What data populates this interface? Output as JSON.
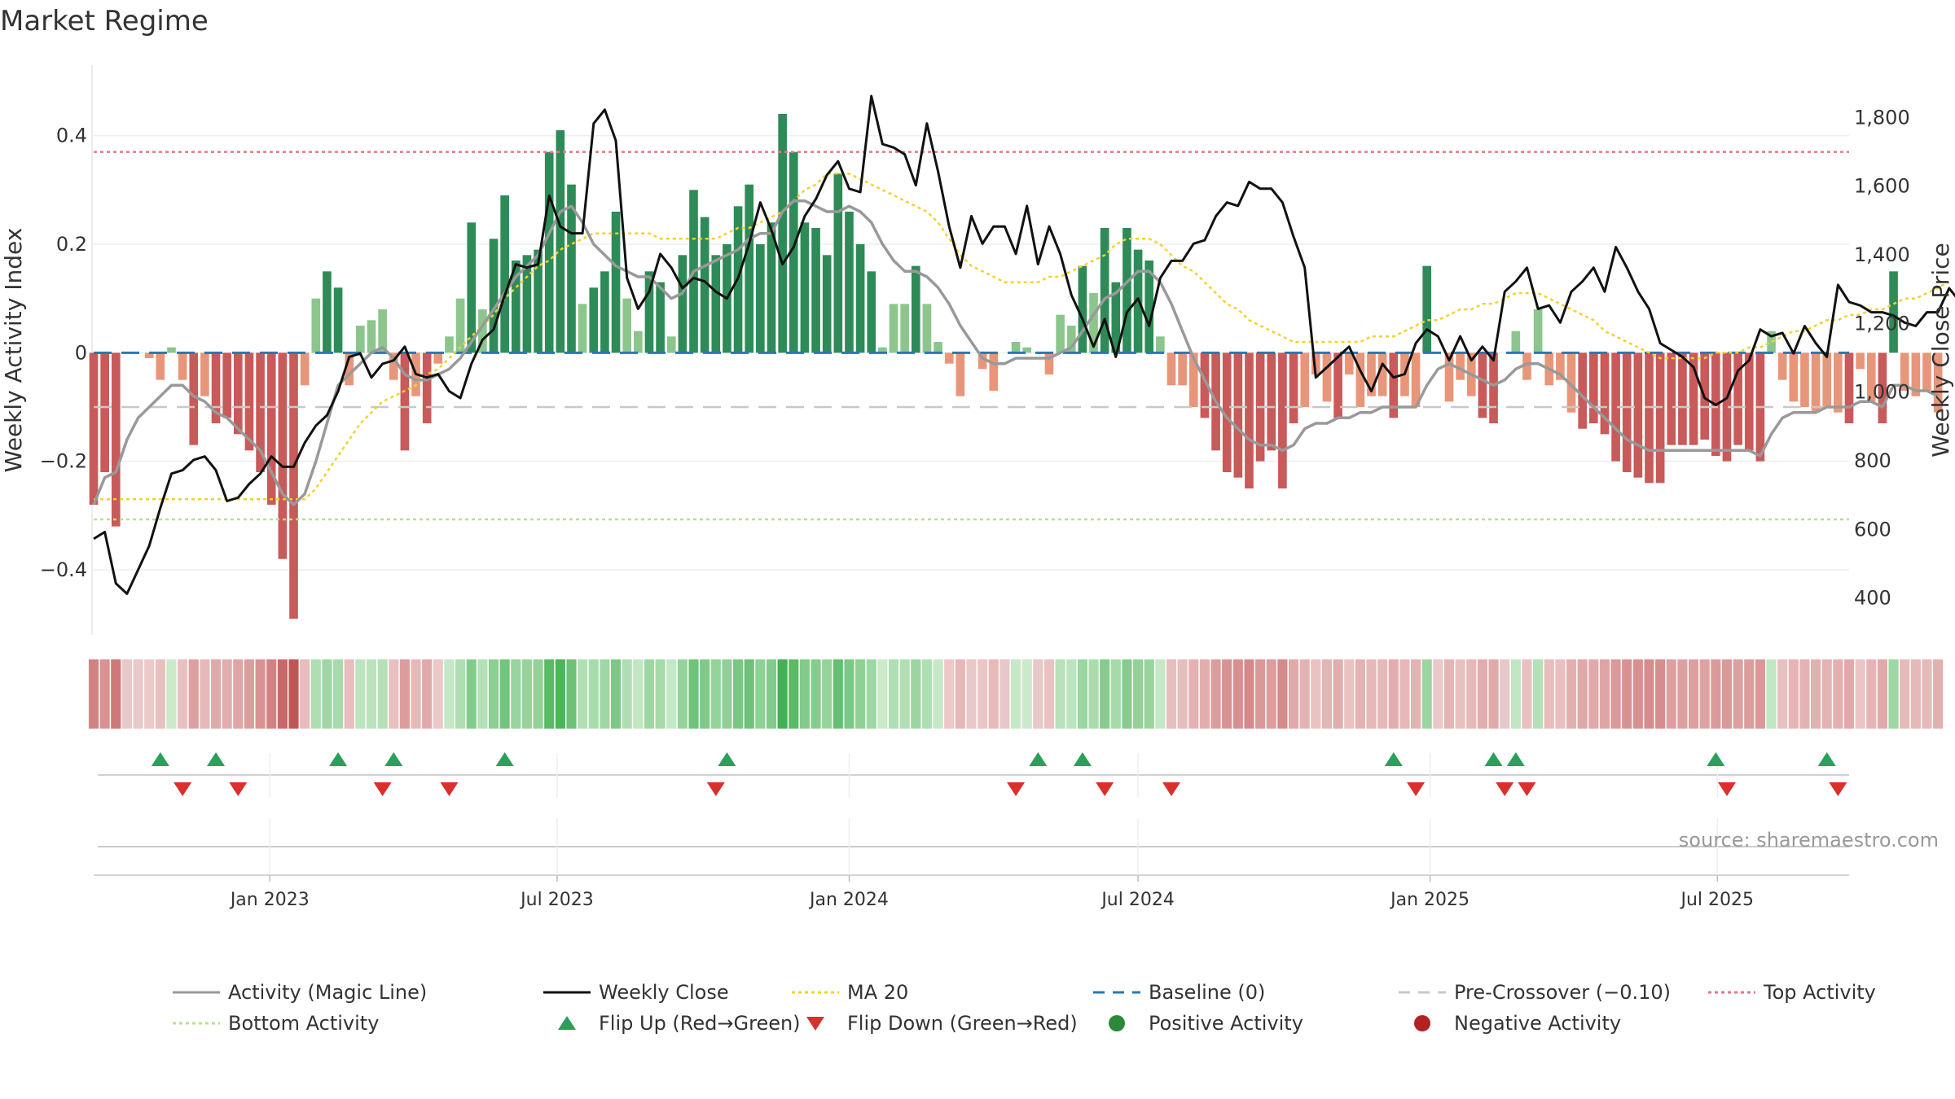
{
  "title": "Market Regime",
  "source_label": "source: sharemaestro.com",
  "chart_data": {
    "type": "bar",
    "y_left": {
      "label": "Weekly Activity Index",
      "range": [
        -0.52,
        0.53
      ],
      "ticks": [
        -0.4,
        -0.2,
        0,
        0.2,
        0.4
      ],
      "tick_labels": [
        "−0.4",
        "−0.2",
        "0",
        "0.2",
        "0.4"
      ]
    },
    "y_right": {
      "label": "Weekly Close Price",
      "range": [
        290,
        1950
      ],
      "ticks": [
        400,
        600,
        800,
        1000,
        1200,
        1400,
        1600,
        1800
      ],
      "tick_labels": [
        "400",
        "600",
        "800",
        "1,000",
        "1,200",
        "1,400",
        "1,600",
        "1,800"
      ]
    },
    "x_range": [
      "2022-09-12",
      "2025-09-22"
    ],
    "x_ticks": [
      {
        "date": "2023-01-01",
        "label": "Jan 2023"
      },
      {
        "date": "2023-07-01",
        "label": "Jul 2023"
      },
      {
        "date": "2024-01-01",
        "label": "Jan 2024"
      },
      {
        "date": "2024-07-01",
        "label": "Jul 2024"
      },
      {
        "date": "2025-01-01",
        "label": "Jan 2025"
      },
      {
        "date": "2025-07-01",
        "label": "Jul 2025"
      }
    ],
    "start_date": "2022-09-12",
    "weekly_activity": [
      -0.28,
      -0.22,
      -0.32,
      0,
      0,
      -0.01,
      -0.05,
      0.01,
      -0.05,
      -0.17,
      -0.08,
      -0.13,
      -0.12,
      -0.15,
      -0.18,
      -0.22,
      -0.28,
      -0.38,
      -0.49,
      -0.06,
      0.1,
      0.15,
      0.12,
      -0.06,
      0.05,
      0.06,
      0.08,
      -0.05,
      -0.18,
      -0.08,
      -0.13,
      -0.02,
      0.03,
      0.1,
      0.24,
      0.08,
      0.21,
      0.29,
      0.17,
      0.18,
      0.19,
      0.37,
      0.41,
      0.31,
      0.09,
      0.12,
      0.15,
      0.26,
      0.1,
      0.04,
      0.15,
      0.13,
      0.03,
      0.18,
      0.3,
      0.25,
      0.18,
      0.2,
      0.27,
      0.31,
      0.2,
      0.24,
      0.44,
      0.37,
      0.24,
      0.23,
      0.18,
      0.33,
      0.26,
      0.2,
      0.15,
      0.01,
      0.09,
      0.09,
      0.16,
      0.09,
      0.02,
      -0.02,
      -0.08,
      0,
      -0.03,
      -0.07,
      0,
      0.02,
      0.01,
      0,
      -0.04,
      0.07,
      0.05,
      0.16,
      0.11,
      0.23,
      0.13,
      0.23,
      0.19,
      0.17,
      0.03,
      -0.06,
      -0.06,
      -0.1,
      -0.12,
      -0.18,
      -0.22,
      -0.23,
      -0.25,
      -0.2,
      -0.18,
      -0.25,
      -0.13,
      -0.1,
      -0.04,
      -0.09,
      -0.12,
      -0.04,
      -0.1,
      -0.08,
      -0.08,
      -0.12,
      -0.08,
      -0.1,
      0.16,
      0,
      -0.09,
      -0.05,
      -0.08,
      -0.12,
      -0.13,
      0,
      0.04,
      -0.05,
      0.08,
      -0.06,
      -0.05,
      -0.11,
      -0.14,
      -0.13,
      -0.15,
      -0.2,
      -0.22,
      -0.23,
      -0.24,
      -0.24,
      -0.17,
      -0.17,
      -0.17,
      -0.16,
      -0.19,
      -0.2,
      -0.17,
      -0.18,
      -0.2,
      0.04,
      -0.05,
      -0.09,
      -0.1,
      -0.11,
      -0.1,
      -0.11,
      -0.13,
      -0.03,
      -0.09,
      -0.13,
      0.15,
      -0.07,
      -0.08,
      -0.07,
      -0.11
    ],
    "weekly_close": [
      570,
      590,
      440,
      410,
      480,
      550,
      660,
      760,
      770,
      800,
      810,
      770,
      680,
      690,
      730,
      760,
      810,
      780,
      780,
      850,
      900,
      930,
      1000,
      1100,
      1110,
      1040,
      1080,
      1090,
      1130,
      1050,
      1040,
      1050,
      1000,
      980,
      1080,
      1150,
      1180,
      1280,
      1370,
      1360,
      1370,
      1570,
      1480,
      1460,
      1460,
      1780,
      1820,
      1730,
      1330,
      1240,
      1290,
      1400,
      1360,
      1300,
      1330,
      1320,
      1290,
      1270,
      1330,
      1430,
      1550,
      1470,
      1370,
      1420,
      1510,
      1560,
      1630,
      1670,
      1590,
      1580,
      1860,
      1720,
      1710,
      1690,
      1600,
      1780,
      1640,
      1480,
      1360,
      1510,
      1430,
      1480,
      1480,
      1400,
      1540,
      1370,
      1480,
      1400,
      1280,
      1210,
      1130,
      1210,
      1100,
      1230,
      1270,
      1190,
      1330,
      1380,
      1380,
      1430,
      1440,
      1510,
      1550,
      1540,
      1610,
      1590,
      1590,
      1550,
      1450,
      1360,
      1040,
      1070,
      1100,
      1130,
      1060,
      1000,
      1080,
      1040,
      1050,
      1140,
      1180,
      1160,
      1090,
      1160,
      1090,
      1130,
      1090,
      1290,
      1320,
      1360,
      1240,
      1250,
      1200,
      1290,
      1320,
      1360,
      1290,
      1420,
      1360,
      1290,
      1240,
      1140,
      1120,
      1100,
      1070,
      980,
      960,
      980,
      1060,
      1090,
      1180,
      1160,
      1170,
      1110,
      1190,
      1140,
      1100,
      1310,
      1260,
      1250,
      1230,
      1230,
      1220,
      1200,
      1190,
      1230,
      1230,
      1300,
      1260,
      1250,
      1220,
      1250,
      1300
    ],
    "magic_line": [
      -0.28,
      -0.23,
      -0.22,
      -0.16,
      -0.12,
      -0.1,
      -0.08,
      -0.06,
      -0.06,
      -0.08,
      -0.09,
      -0.11,
      -0.12,
      -0.14,
      -0.16,
      -0.18,
      -0.22,
      -0.26,
      -0.28,
      -0.26,
      -0.2,
      -0.13,
      -0.06,
      -0.04,
      -0.02,
      0.0,
      0.01,
      -0.01,
      -0.04,
      -0.05,
      -0.05,
      -0.04,
      -0.03,
      -0.01,
      0.02,
      0.05,
      0.08,
      0.11,
      0.14,
      0.16,
      0.18,
      0.22,
      0.26,
      0.27,
      0.24,
      0.2,
      0.18,
      0.16,
      0.15,
      0.14,
      0.14,
      0.12,
      0.1,
      0.11,
      0.15,
      0.16,
      0.17,
      0.18,
      0.19,
      0.21,
      0.22,
      0.22,
      0.26,
      0.28,
      0.28,
      0.27,
      0.26,
      0.26,
      0.27,
      0.26,
      0.24,
      0.2,
      0.17,
      0.15,
      0.15,
      0.14,
      0.12,
      0.09,
      0.05,
      0.02,
      -0.01,
      -0.02,
      -0.02,
      -0.01,
      -0.01,
      -0.01,
      -0.01,
      0.0,
      0.01,
      0.04,
      0.07,
      0.1,
      0.11,
      0.13,
      0.15,
      0.15,
      0.13,
      0.09,
      0.04,
      -0.01,
      -0.05,
      -0.09,
      -0.12,
      -0.14,
      -0.16,
      -0.17,
      -0.17,
      -0.18,
      -0.17,
      -0.14,
      -0.13,
      -0.13,
      -0.12,
      -0.12,
      -0.11,
      -0.11,
      -0.1,
      -0.1,
      -0.1,
      -0.1,
      -0.06,
      -0.03,
      -0.02,
      -0.03,
      -0.04,
      -0.05,
      -0.06,
      -0.05,
      -0.03,
      -0.02,
      -0.02,
      -0.03,
      -0.04,
      -0.06,
      -0.08,
      -0.1,
      -0.12,
      -0.14,
      -0.16,
      -0.17,
      -0.18,
      -0.18,
      -0.18,
      -0.18,
      -0.18,
      -0.18,
      -0.18,
      -0.18,
      -0.18,
      -0.18,
      -0.19,
      -0.15,
      -0.12,
      -0.11,
      -0.11,
      -0.11,
      -0.1,
      -0.1,
      -0.1,
      -0.09,
      -0.09,
      -0.1,
      -0.06,
      -0.06,
      -0.07,
      -0.07,
      -0.08
    ],
    "ma20": [
      -0.27,
      -0.27,
      -0.27,
      -0.27,
      -0.27,
      -0.27,
      -0.27,
      -0.27,
      -0.27,
      -0.27,
      -0.27,
      -0.27,
      -0.27,
      -0.27,
      -0.27,
      -0.27,
      -0.27,
      -0.27,
      -0.27,
      -0.27,
      -0.25,
      -0.22,
      -0.19,
      -0.16,
      -0.13,
      -0.11,
      -0.09,
      -0.08,
      -0.07,
      -0.06,
      -0.04,
      -0.03,
      -0.01,
      0.01,
      0.03,
      0.05,
      0.07,
      0.1,
      0.12,
      0.14,
      0.16,
      0.17,
      0.19,
      0.2,
      0.21,
      0.22,
      0.22,
      0.22,
      0.22,
      0.22,
      0.22,
      0.21,
      0.21,
      0.21,
      0.21,
      0.21,
      0.21,
      0.22,
      0.23,
      0.23,
      0.24,
      0.25,
      0.26,
      0.28,
      0.3,
      0.31,
      0.33,
      0.33,
      0.33,
      0.32,
      0.31,
      0.3,
      0.29,
      0.28,
      0.27,
      0.26,
      0.24,
      0.21,
      0.18,
      0.16,
      0.15,
      0.14,
      0.13,
      0.13,
      0.13,
      0.13,
      0.14,
      0.14,
      0.15,
      0.16,
      0.17,
      0.18,
      0.2,
      0.21,
      0.21,
      0.21,
      0.2,
      0.18,
      0.16,
      0.15,
      0.13,
      0.11,
      0.09,
      0.08,
      0.06,
      0.05,
      0.04,
      0.03,
      0.02,
      0.02,
      0.02,
      0.02,
      0.02,
      0.02,
      0.02,
      0.03,
      0.03,
      0.03,
      0.04,
      0.05,
      0.06,
      0.06,
      0.07,
      0.08,
      0.08,
      0.09,
      0.09,
      0.1,
      0.11,
      0.11,
      0.11,
      0.1,
      0.09,
      0.08,
      0.07,
      0.06,
      0.04,
      0.03,
      0.02,
      0.01,
      0.0,
      -0.01,
      -0.01,
      -0.01,
      -0.01,
      -0.01,
      -0.0,
      0.0,
      0.0,
      0.01,
      0.01,
      0.02,
      0.03,
      0.04,
      0.04,
      0.05,
      0.06,
      0.06,
      0.07,
      0.07,
      0.08,
      0.08,
      0.09,
      0.1,
      0.1,
      0.11,
      0.12,
      0.13
    ],
    "flip_up_dates": [
      "2022-10-24",
      "2022-11-28",
      "2023-02-13",
      "2023-03-20",
      "2023-05-29",
      "2023-10-16",
      "2024-04-29",
      "2024-05-27",
      "2024-12-09",
      "2025-02-10",
      "2025-02-24",
      "2025-06-30",
      "2025-09-08"
    ],
    "flip_down_dates": [
      "2022-11-07",
      "2022-12-12",
      "2023-03-13",
      "2023-04-24",
      "2023-10-09",
      "2024-04-15",
      "2024-06-10",
      "2024-07-22",
      "2024-12-23",
      "2025-02-17",
      "2025-03-03",
      "2025-07-07",
      "2025-09-15"
    ],
    "top_activity_level": 0.37,
    "bottom_activity_level": -0.307,
    "pre_crossover_level": -0.1,
    "baseline_level": 0,
    "colors": {
      "strong_green": "#2e8b57",
      "light_green": "#8cc68c",
      "strong_red": "#c85a5a",
      "light_red": "#e8967a",
      "flip_up": "#2aa05a",
      "flip_down": "#d9302c",
      "magic_line": "#999999",
      "close_line": "#111111",
      "ma20": "#f2d22e",
      "baseline": "#2a78b4",
      "pre_crossover": "#c8c8c8",
      "top_activity": "#e07a8a",
      "bottom_activity": "#b5e28a"
    },
    "legend": [
      {
        "label": "Activity (Magic Line)",
        "symbol": "line-solid",
        "color": "#999999"
      },
      {
        "label": "Weekly Close",
        "symbol": "line-solid",
        "color": "#111111"
      },
      {
        "label": "MA 20",
        "symbol": "line-dotted",
        "color": "#f2d22e"
      },
      {
        "label": "Baseline (0)",
        "symbol": "line-dashed",
        "color": "#2a78b4"
      },
      {
        "label": "Pre-Crossover (−0.10)",
        "symbol": "line-dashed",
        "color": "#c8c8c8"
      },
      {
        "label": "Top Activity",
        "symbol": "line-dotted",
        "color": "#e07a8a"
      },
      {
        "label": "Bottom Activity",
        "symbol": "line-dotted",
        "color": "#b5e28a"
      },
      {
        "label": "Flip Up (Red→Green)",
        "symbol": "triangle-up",
        "color": "#2aa05a"
      },
      {
        "label": "Flip Down (Green→Red)",
        "symbol": "triangle-down",
        "color": "#d9302c"
      },
      {
        "label": "Positive Activity",
        "symbol": "circle",
        "color": "#2a8a3a"
      },
      {
        "label": "Negative Activity",
        "symbol": "circle",
        "color": "#b22222"
      }
    ]
  }
}
